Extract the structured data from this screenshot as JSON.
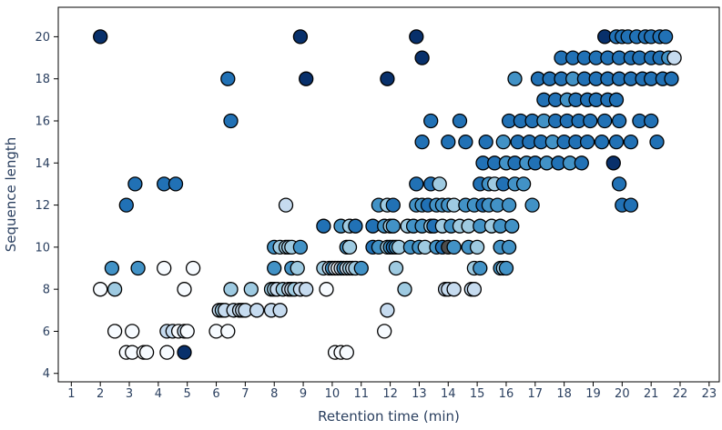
{
  "chart_data": {
    "type": "scatter",
    "xlabel": "Retention time (min)",
    "ylabel": "Sequence length",
    "xlim": [
      0.55,
      23.35
    ],
    "ylim": [
      3.6,
      21.4
    ],
    "xticks": [
      1,
      2,
      3,
      4,
      5,
      6,
      7,
      8,
      9,
      10,
      11,
      12,
      13,
      14,
      15,
      16,
      17,
      18,
      19,
      20,
      21,
      22,
      23
    ],
    "yticks": [
      4,
      6,
      8,
      10,
      12,
      14,
      16,
      18,
      20
    ],
    "grid": false,
    "legend": "none",
    "colors": {
      "very_light": "#f7fbff",
      "light": "#c6dbef",
      "medium_light": "#9ecae1",
      "medium": "#4292c6",
      "dark": "#2171b5",
      "very_dark": "#08306b",
      "gray": "#4d4d4d",
      "marker_edge": "#000000",
      "frame": "#000000"
    },
    "points": [
      {
        "x": 2.0,
        "y": 20,
        "c": "very_dark"
      },
      {
        "x": 8.9,
        "y": 20,
        "c": "very_dark"
      },
      {
        "x": 12.9,
        "y": 20,
        "c": "very_dark"
      },
      {
        "x": 13.1,
        "y": 19,
        "c": "very_dark"
      },
      {
        "x": 6.4,
        "y": 18,
        "c": "dark"
      },
      {
        "x": 9.1,
        "y": 18,
        "c": "very_dark"
      },
      {
        "x": 11.9,
        "y": 18,
        "c": "very_dark"
      },
      {
        "x": 16.3,
        "y": 18,
        "c": "medium"
      },
      {
        "x": 6.5,
        "y": 16,
        "c": "dark"
      },
      {
        "x": 3.2,
        "y": 13,
        "c": "dark"
      },
      {
        "x": 4.2,
        "y": 13,
        "c": "dark"
      },
      {
        "x": 4.6,
        "y": 13,
        "c": "dark"
      },
      {
        "x": 2.9,
        "y": 12,
        "c": "dark"
      },
      {
        "x": 2.4,
        "y": 9,
        "c": "medium"
      },
      {
        "x": 3.3,
        "y": 9,
        "c": "medium"
      },
      {
        "x": 4.2,
        "y": 9,
        "c": "very_light"
      },
      {
        "x": 5.2,
        "y": 9,
        "c": "very_light"
      },
      {
        "x": 2.0,
        "y": 8,
        "c": "very_light"
      },
      {
        "x": 2.5,
        "y": 8,
        "c": "medium_light"
      },
      {
        "x": 4.9,
        "y": 8,
        "c": "very_light"
      },
      {
        "x": 2.5,
        "y": 6,
        "c": "very_light"
      },
      {
        "x": 3.1,
        "y": 6,
        "c": "very_light"
      },
      {
        "x": 4.3,
        "y": 6,
        "c": "light"
      },
      {
        "x": 4.5,
        "y": 6,
        "c": "light"
      },
      {
        "x": 4.7,
        "y": 6,
        "c": "very_light"
      },
      {
        "x": 4.9,
        "y": 6,
        "c": "light"
      },
      {
        "x": 5.0,
        "y": 6,
        "c": "very_light"
      },
      {
        "x": 6.0,
        "y": 6,
        "c": "very_light"
      },
      {
        "x": 6.4,
        "y": 6,
        "c": "very_light"
      },
      {
        "x": 2.9,
        "y": 5,
        "c": "very_light"
      },
      {
        "x": 3.1,
        "y": 5,
        "c": "very_light"
      },
      {
        "x": 3.5,
        "y": 5,
        "c": "very_light"
      },
      {
        "x": 3.6,
        "y": 5,
        "c": "very_light"
      },
      {
        "x": 4.3,
        "y": 5,
        "c": "very_light"
      },
      {
        "x": 4.9,
        "y": 5,
        "c": "very_dark"
      },
      {
        "x": 6.1,
        "y": 7,
        "c": "light"
      },
      {
        "x": 6.2,
        "y": 7,
        "c": "medium_light"
      },
      {
        "x": 6.3,
        "y": 7,
        "c": "light"
      },
      {
        "x": 6.6,
        "y": 7,
        "c": "light"
      },
      {
        "x": 6.8,
        "y": 7,
        "c": "light"
      },
      {
        "x": 6.9,
        "y": 7,
        "c": "light"
      },
      {
        "x": 7.0,
        "y": 7,
        "c": "light"
      },
      {
        "x": 7.4,
        "y": 7,
        "c": "light"
      },
      {
        "x": 7.9,
        "y": 7,
        "c": "light"
      },
      {
        "x": 8.2,
        "y": 7,
        "c": "light"
      },
      {
        "x": 6.5,
        "y": 8,
        "c": "medium_light"
      },
      {
        "x": 7.2,
        "y": 8,
        "c": "medium_light"
      },
      {
        "x": 7.9,
        "y": 8,
        "c": "medium_light"
      },
      {
        "x": 8.0,
        "y": 8,
        "c": "medium_light"
      },
      {
        "x": 8.1,
        "y": 8,
        "c": "light"
      },
      {
        "x": 8.3,
        "y": 8,
        "c": "medium_light"
      },
      {
        "x": 8.5,
        "y": 8,
        "c": "light"
      },
      {
        "x": 8.6,
        "y": 8,
        "c": "light"
      },
      {
        "x": 8.7,
        "y": 8,
        "c": "medium_light"
      },
      {
        "x": 8.9,
        "y": 8,
        "c": "light"
      },
      {
        "x": 9.1,
        "y": 8,
        "c": "light"
      },
      {
        "x": 9.8,
        "y": 8,
        "c": "very_light"
      },
      {
        "x": 12.5,
        "y": 8,
        "c": "medium_light"
      },
      {
        "x": 13.9,
        "y": 8,
        "c": "light"
      },
      {
        "x": 14.0,
        "y": 8,
        "c": "light"
      },
      {
        "x": 14.2,
        "y": 8,
        "c": "light"
      },
      {
        "x": 14.8,
        "y": 8,
        "c": "light"
      },
      {
        "x": 14.9,
        "y": 8,
        "c": "light"
      },
      {
        "x": 8.0,
        "y": 9,
        "c": "medium"
      },
      {
        "x": 8.6,
        "y": 9,
        "c": "medium"
      },
      {
        "x": 8.8,
        "y": 9,
        "c": "medium_light"
      },
      {
        "x": 9.7,
        "y": 9,
        "c": "medium_light"
      },
      {
        "x": 9.9,
        "y": 9,
        "c": "light"
      },
      {
        "x": 10.0,
        "y": 9,
        "c": "medium"
      },
      {
        "x": 10.1,
        "y": 9,
        "c": "light"
      },
      {
        "x": 10.2,
        "y": 9,
        "c": "very_light"
      },
      {
        "x": 10.3,
        "y": 9,
        "c": "light"
      },
      {
        "x": 10.4,
        "y": 9,
        "c": "medium"
      },
      {
        "x": 10.5,
        "y": 9,
        "c": "light"
      },
      {
        "x": 10.6,
        "y": 9,
        "c": "medium_light"
      },
      {
        "x": 10.7,
        "y": 9,
        "c": "light"
      },
      {
        "x": 10.8,
        "y": 9,
        "c": "medium_light"
      },
      {
        "x": 11.0,
        "y": 9,
        "c": "medium"
      },
      {
        "x": 12.2,
        "y": 9,
        "c": "medium_light"
      },
      {
        "x": 14.9,
        "y": 9,
        "c": "medium_light"
      },
      {
        "x": 15.1,
        "y": 9,
        "c": "medium"
      },
      {
        "x": 15.8,
        "y": 9,
        "c": "medium"
      },
      {
        "x": 15.9,
        "y": 9,
        "c": "medium_light"
      },
      {
        "x": 16.0,
        "y": 9,
        "c": "medium"
      },
      {
        "x": 10.1,
        "y": 5,
        "c": "very_light"
      },
      {
        "x": 10.3,
        "y": 5,
        "c": "very_light"
      },
      {
        "x": 10.5,
        "y": 5,
        "c": "very_light"
      },
      {
        "x": 11.8,
        "y": 6,
        "c": "very_light"
      },
      {
        "x": 11.9,
        "y": 7,
        "c": "light"
      },
      {
        "x": 8.0,
        "y": 10,
        "c": "medium"
      },
      {
        "x": 8.2,
        "y": 10,
        "c": "medium_light"
      },
      {
        "x": 8.4,
        "y": 10,
        "c": "medium_light"
      },
      {
        "x": 8.5,
        "y": 10,
        "c": "medium_light"
      },
      {
        "x": 8.6,
        "y": 10,
        "c": "medium_light"
      },
      {
        "x": 8.9,
        "y": 10,
        "c": "medium"
      },
      {
        "x": 10.5,
        "y": 10,
        "c": "medium"
      },
      {
        "x": 10.6,
        "y": 10,
        "c": "medium_light"
      },
      {
        "x": 11.4,
        "y": 10,
        "c": "dark"
      },
      {
        "x": 11.6,
        "y": 10,
        "c": "medium"
      },
      {
        "x": 11.9,
        "y": 10,
        "c": "medium_light"
      },
      {
        "x": 12.0,
        "y": 10,
        "c": "medium"
      },
      {
        "x": 12.1,
        "y": 10,
        "c": "dark"
      },
      {
        "x": 12.2,
        "y": 10,
        "c": "medium"
      },
      {
        "x": 12.3,
        "y": 10,
        "c": "medium_light"
      },
      {
        "x": 12.7,
        "y": 10,
        "c": "medium"
      },
      {
        "x": 13.0,
        "y": 10,
        "c": "medium"
      },
      {
        "x": 13.2,
        "y": 10,
        "c": "medium_light"
      },
      {
        "x": 13.6,
        "y": 10,
        "c": "medium"
      },
      {
        "x": 13.8,
        "y": 10,
        "c": "dark"
      },
      {
        "x": 14.0,
        "y": 10,
        "c": "gray"
      },
      {
        "x": 14.2,
        "y": 10,
        "c": "medium"
      },
      {
        "x": 14.7,
        "y": 10,
        "c": "medium"
      },
      {
        "x": 15.0,
        "y": 10,
        "c": "medium_light"
      },
      {
        "x": 15.8,
        "y": 10,
        "c": "medium"
      },
      {
        "x": 16.1,
        "y": 10,
        "c": "medium"
      },
      {
        "x": 9.7,
        "y": 11,
        "c": "dark"
      },
      {
        "x": 10.3,
        "y": 11,
        "c": "medium"
      },
      {
        "x": 10.6,
        "y": 11,
        "c": "medium_light"
      },
      {
        "x": 10.8,
        "y": 11,
        "c": "dark"
      },
      {
        "x": 11.4,
        "y": 11,
        "c": "dark"
      },
      {
        "x": 11.8,
        "y": 11,
        "c": "medium"
      },
      {
        "x": 12.0,
        "y": 11,
        "c": "medium_light"
      },
      {
        "x": 12.1,
        "y": 11,
        "c": "medium"
      },
      {
        "x": 12.6,
        "y": 11,
        "c": "medium_light"
      },
      {
        "x": 12.8,
        "y": 11,
        "c": "medium"
      },
      {
        "x": 13.1,
        "y": 11,
        "c": "medium"
      },
      {
        "x": 13.4,
        "y": 11,
        "c": "medium_light"
      },
      {
        "x": 13.5,
        "y": 11,
        "c": "dark"
      },
      {
        "x": 13.8,
        "y": 11,
        "c": "medium_light"
      },
      {
        "x": 14.1,
        "y": 11,
        "c": "medium"
      },
      {
        "x": 14.4,
        "y": 11,
        "c": "medium_light"
      },
      {
        "x": 14.7,
        "y": 11,
        "c": "medium_light"
      },
      {
        "x": 15.1,
        "y": 11,
        "c": "medium"
      },
      {
        "x": 15.5,
        "y": 11,
        "c": "medium_light"
      },
      {
        "x": 15.8,
        "y": 11,
        "c": "medium"
      },
      {
        "x": 16.2,
        "y": 11,
        "c": "medium"
      },
      {
        "x": 8.4,
        "y": 12,
        "c": "light"
      },
      {
        "x": 11.6,
        "y": 12,
        "c": "medium"
      },
      {
        "x": 11.9,
        "y": 12,
        "c": "medium_light"
      },
      {
        "x": 12.1,
        "y": 12,
        "c": "dark"
      },
      {
        "x": 12.9,
        "y": 12,
        "c": "medium"
      },
      {
        "x": 13.1,
        "y": 12,
        "c": "medium"
      },
      {
        "x": 13.3,
        "y": 12,
        "c": "dark"
      },
      {
        "x": 13.6,
        "y": 12,
        "c": "medium"
      },
      {
        "x": 13.8,
        "y": 12,
        "c": "medium"
      },
      {
        "x": 14.0,
        "y": 12,
        "c": "medium"
      },
      {
        "x": 14.2,
        "y": 12,
        "c": "medium_light"
      },
      {
        "x": 14.6,
        "y": 12,
        "c": "medium"
      },
      {
        "x": 14.9,
        "y": 12,
        "c": "medium"
      },
      {
        "x": 15.2,
        "y": 12,
        "c": "dark"
      },
      {
        "x": 15.4,
        "y": 12,
        "c": "medium"
      },
      {
        "x": 15.7,
        "y": 12,
        "c": "medium"
      },
      {
        "x": 16.1,
        "y": 12,
        "c": "medium"
      },
      {
        "x": 16.9,
        "y": 12,
        "c": "medium"
      },
      {
        "x": 12.9,
        "y": 13,
        "c": "dark"
      },
      {
        "x": 13.4,
        "y": 13,
        "c": "dark"
      },
      {
        "x": 13.7,
        "y": 13,
        "c": "medium_light"
      },
      {
        "x": 15.1,
        "y": 13,
        "c": "dark"
      },
      {
        "x": 15.4,
        "y": 13,
        "c": "medium"
      },
      {
        "x": 15.6,
        "y": 13,
        "c": "medium_light"
      },
      {
        "x": 15.9,
        "y": 13,
        "c": "dark"
      },
      {
        "x": 16.3,
        "y": 13,
        "c": "medium"
      },
      {
        "x": 16.6,
        "y": 13,
        "c": "medium"
      },
      {
        "x": 15.2,
        "y": 14,
        "c": "dark"
      },
      {
        "x": 15.6,
        "y": 14,
        "c": "dark"
      },
      {
        "x": 16.0,
        "y": 14,
        "c": "medium"
      },
      {
        "x": 16.3,
        "y": 14,
        "c": "dark"
      },
      {
        "x": 16.7,
        "y": 14,
        "c": "medium"
      },
      {
        "x": 17.0,
        "y": 14,
        "c": "dark"
      },
      {
        "x": 17.4,
        "y": 14,
        "c": "medium"
      },
      {
        "x": 17.8,
        "y": 14,
        "c": "dark"
      },
      {
        "x": 18.2,
        "y": 14,
        "c": "medium"
      },
      {
        "x": 18.6,
        "y": 14,
        "c": "dark"
      },
      {
        "x": 19.7,
        "y": 14,
        "c": "very_dark"
      },
      {
        "x": 13.1,
        "y": 15,
        "c": "dark"
      },
      {
        "x": 14.0,
        "y": 15,
        "c": "dark"
      },
      {
        "x": 14.6,
        "y": 15,
        "c": "dark"
      },
      {
        "x": 15.3,
        "y": 15,
        "c": "dark"
      },
      {
        "x": 15.9,
        "y": 15,
        "c": "medium"
      },
      {
        "x": 16.4,
        "y": 15,
        "c": "dark"
      },
      {
        "x": 16.8,
        "y": 15,
        "c": "dark"
      },
      {
        "x": 17.2,
        "y": 15,
        "c": "dark"
      },
      {
        "x": 17.6,
        "y": 15,
        "c": "medium"
      },
      {
        "x": 18.0,
        "y": 15,
        "c": "dark"
      },
      {
        "x": 18.4,
        "y": 15,
        "c": "dark"
      },
      {
        "x": 18.8,
        "y": 15,
        "c": "dark"
      },
      {
        "x": 19.3,
        "y": 15,
        "c": "dark"
      },
      {
        "x": 19.8,
        "y": 15,
        "c": "dark"
      },
      {
        "x": 20.3,
        "y": 15,
        "c": "dark"
      },
      {
        "x": 21.2,
        "y": 15,
        "c": "dark"
      },
      {
        "x": 13.4,
        "y": 16,
        "c": "dark"
      },
      {
        "x": 14.4,
        "y": 16,
        "c": "dark"
      },
      {
        "x": 16.1,
        "y": 16,
        "c": "dark"
      },
      {
        "x": 16.5,
        "y": 16,
        "c": "dark"
      },
      {
        "x": 16.9,
        "y": 16,
        "c": "dark"
      },
      {
        "x": 17.3,
        "y": 16,
        "c": "medium"
      },
      {
        "x": 17.7,
        "y": 16,
        "c": "dark"
      },
      {
        "x": 18.1,
        "y": 16,
        "c": "dark"
      },
      {
        "x": 18.5,
        "y": 16,
        "c": "dark"
      },
      {
        "x": 18.9,
        "y": 16,
        "c": "dark"
      },
      {
        "x": 19.4,
        "y": 16,
        "c": "dark"
      },
      {
        "x": 19.9,
        "y": 16,
        "c": "dark"
      },
      {
        "x": 20.6,
        "y": 16,
        "c": "dark"
      },
      {
        "x": 21.0,
        "y": 16,
        "c": "dark"
      },
      {
        "x": 17.3,
        "y": 17,
        "c": "dark"
      },
      {
        "x": 17.7,
        "y": 17,
        "c": "dark"
      },
      {
        "x": 18.1,
        "y": 17,
        "c": "medium"
      },
      {
        "x": 18.4,
        "y": 17,
        "c": "dark"
      },
      {
        "x": 18.8,
        "y": 17,
        "c": "dark"
      },
      {
        "x": 19.1,
        "y": 17,
        "c": "dark"
      },
      {
        "x": 19.5,
        "y": 17,
        "c": "dark"
      },
      {
        "x": 19.8,
        "y": 17,
        "c": "dark"
      },
      {
        "x": 17.1,
        "y": 18,
        "c": "dark"
      },
      {
        "x": 17.5,
        "y": 18,
        "c": "dark"
      },
      {
        "x": 17.9,
        "y": 18,
        "c": "dark"
      },
      {
        "x": 18.3,
        "y": 18,
        "c": "medium"
      },
      {
        "x": 18.7,
        "y": 18,
        "c": "dark"
      },
      {
        "x": 19.1,
        "y": 18,
        "c": "dark"
      },
      {
        "x": 19.5,
        "y": 18,
        "c": "dark"
      },
      {
        "x": 19.9,
        "y": 18,
        "c": "dark"
      },
      {
        "x": 20.3,
        "y": 18,
        "c": "dark"
      },
      {
        "x": 20.7,
        "y": 18,
        "c": "dark"
      },
      {
        "x": 21.0,
        "y": 18,
        "c": "dark"
      },
      {
        "x": 21.4,
        "y": 18,
        "c": "dark"
      },
      {
        "x": 21.7,
        "y": 18,
        "c": "dark"
      },
      {
        "x": 17.9,
        "y": 19,
        "c": "dark"
      },
      {
        "x": 18.3,
        "y": 19,
        "c": "dark"
      },
      {
        "x": 18.7,
        "y": 19,
        "c": "dark"
      },
      {
        "x": 19.1,
        "y": 19,
        "c": "dark"
      },
      {
        "x": 19.5,
        "y": 19,
        "c": "dark"
      },
      {
        "x": 19.9,
        "y": 19,
        "c": "dark"
      },
      {
        "x": 20.3,
        "y": 19,
        "c": "dark"
      },
      {
        "x": 20.6,
        "y": 19,
        "c": "dark"
      },
      {
        "x": 21.0,
        "y": 19,
        "c": "dark"
      },
      {
        "x": 21.3,
        "y": 19,
        "c": "dark"
      },
      {
        "x": 21.6,
        "y": 19,
        "c": "medium"
      },
      {
        "x": 21.8,
        "y": 19,
        "c": "light"
      },
      {
        "x": 19.4,
        "y": 20,
        "c": "very_dark"
      },
      {
        "x": 19.8,
        "y": 20,
        "c": "dark"
      },
      {
        "x": 20.0,
        "y": 20,
        "c": "dark"
      },
      {
        "x": 20.2,
        "y": 20,
        "c": "dark"
      },
      {
        "x": 20.5,
        "y": 20,
        "c": "dark"
      },
      {
        "x": 20.8,
        "y": 20,
        "c": "dark"
      },
      {
        "x": 21.0,
        "y": 20,
        "c": "dark"
      },
      {
        "x": 21.3,
        "y": 20,
        "c": "dark"
      },
      {
        "x": 21.5,
        "y": 20,
        "c": "dark"
      },
      {
        "x": 20.0,
        "y": 12,
        "c": "dark"
      },
      {
        "x": 20.3,
        "y": 12,
        "c": "dark"
      },
      {
        "x": 19.9,
        "y": 13,
        "c": "dark"
      }
    ]
  }
}
